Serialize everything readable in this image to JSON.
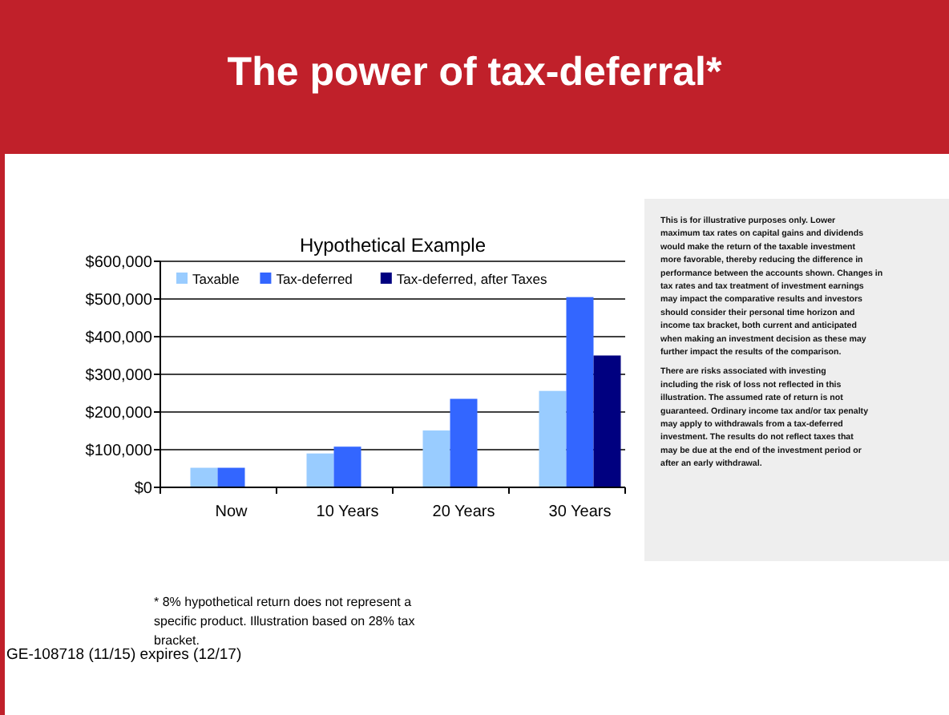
{
  "chart_data": {
    "type": "bar",
    "title": "The power of tax-deferral*",
    "subtitle": "Hypothetical Example",
    "categories": [
      "Now",
      "10 Years",
      "20 Years",
      "30 Years"
    ],
    "series": [
      {
        "name": "Taxable",
        "color": "#99ccff",
        "values": [
          52000,
          90000,
          151000,
          256000
        ]
      },
      {
        "name": "Tax-deferred",
        "color": "#3366ff",
        "values": [
          52000,
          108000,
          235000,
          505000
        ]
      },
      {
        "name": "Tax-deferred, after Taxes",
        "color": "#000080",
        "values": [
          null,
          null,
          null,
          350000
        ]
      }
    ],
    "ylim": [
      0,
      600000
    ],
    "yticks": [
      {
        "value": 0,
        "label": "$0"
      },
      {
        "value": 100000,
        "label": "$100,000"
      },
      {
        "value": 200000,
        "label": "$200,000"
      },
      {
        "value": 300000,
        "label": "$300,000"
      },
      {
        "value": 400000,
        "label": "$400,000"
      },
      {
        "value": 500000,
        "label": "$500,000"
      },
      {
        "value": 600000,
        "label": "$600,000"
      }
    ],
    "grid": "y",
    "legend": "top left",
    "annotations": [
      "This is for illustrative purposes only. Lower maximum tax rates on capital gains and dividends would make the return of the taxable investment more favorable, thereby reducing the difference in performance between the accounts shown. Changes in tax rates and tax treatment of investment earnings may impact the comparative results and investors should consider their personal time horizon and income tax bracket, both current and anticipated when making an investment decision as these may further impact the results of the comparison.",
      "There are risks associated with investing including the risk of loss not reflected in this illustration. The assumed rate of return is not guaranteed. Ordinary income tax and/or tax penalty may apply to withdrawals from a tax-deferred investment. The results do not reflect taxes that may be due at the end of the investment period or after an early withdrawal.",
      "* 8% hypothetical return does not represent a specific product. Illustration based on 28% tax bracket.",
      "GE-108718 (11/15) expires (12/17)"
    ]
  }
}
